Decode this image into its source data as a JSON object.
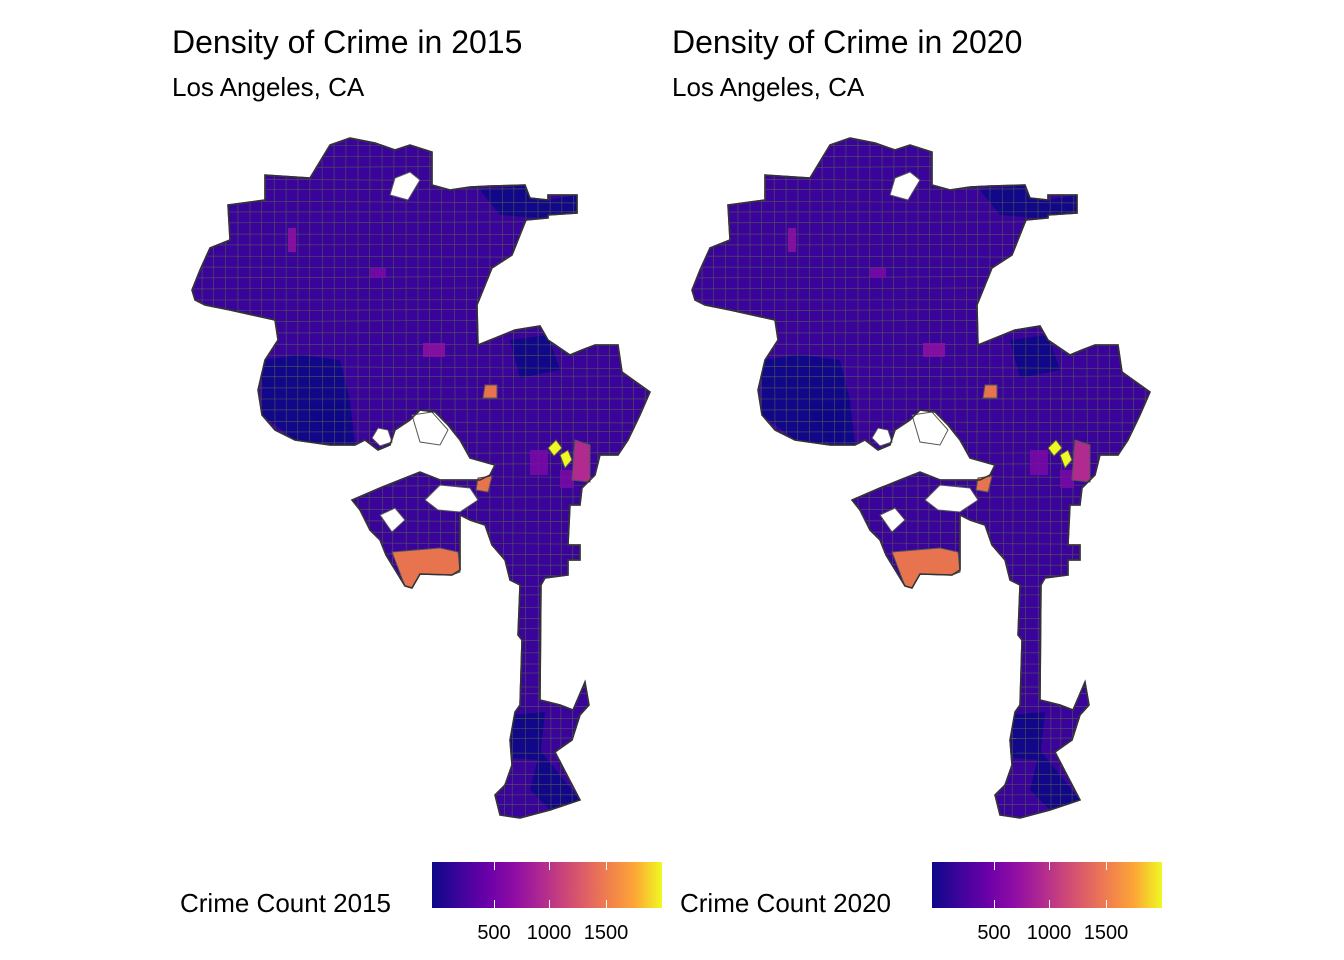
{
  "maps": [
    {
      "title": "Density of Crime in 2015",
      "subtitle": "Los Angeles, CA",
      "legend_title": "Crime Count 2015",
      "legend_ticks": [
        "500",
        "1000",
        "1500"
      ]
    },
    {
      "title": "Density of Crime in 2020",
      "subtitle": "Los Angeles, CA",
      "legend_title": "Crime Count 2020",
      "legend_ticks": [
        "500",
        "1000",
        "1500"
      ]
    }
  ],
  "colors": {
    "low": "#0d0887",
    "base_fill": "#3a049a",
    "mid": "#b12a90",
    "high_orange": "#e8744f",
    "peak_yellow": "#f0f921",
    "border": "#555555"
  }
}
